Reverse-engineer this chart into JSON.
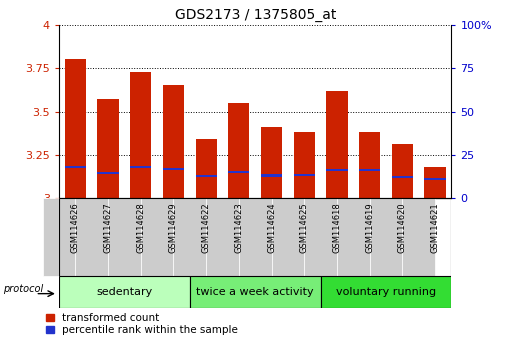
{
  "title": "GDS2173 / 1375805_at",
  "samples": [
    "GSM114626",
    "GSM114627",
    "GSM114628",
    "GSM114629",
    "GSM114622",
    "GSM114623",
    "GSM114624",
    "GSM114625",
    "GSM114618",
    "GSM114619",
    "GSM114620",
    "GSM114621"
  ],
  "transformed_count": [
    3.8,
    3.57,
    3.73,
    3.65,
    3.34,
    3.55,
    3.41,
    3.38,
    3.62,
    3.38,
    3.31,
    3.18
  ],
  "percentile_rank": [
    3.175,
    3.14,
    3.175,
    3.16,
    3.12,
    3.145,
    3.125,
    3.13,
    3.155,
    3.155,
    3.115,
    3.105
  ],
  "blue_bar_height": [
    0.012,
    0.012,
    0.012,
    0.012,
    0.012,
    0.012,
    0.012,
    0.012,
    0.012,
    0.012,
    0.012,
    0.012
  ],
  "bar_color": "#cc2200",
  "blue_color": "#2233cc",
  "ymin": 3.0,
  "ymax": 4.0,
  "y2min": 0,
  "y2max": 100,
  "yticks": [
    3.0,
    3.25,
    3.5,
    3.75,
    4.0
  ],
  "y2ticks": [
    0,
    25,
    50,
    75,
    100
  ],
  "groups": [
    {
      "label": "sedentary",
      "start": 0,
      "end": 4,
      "color": "#bbffbb"
    },
    {
      "label": "twice a week activity",
      "start": 4,
      "end": 8,
      "color": "#77ee77"
    },
    {
      "label": "voluntary running",
      "start": 8,
      "end": 12,
      "color": "#33dd33"
    }
  ],
  "protocol_label": "protocol",
  "legend_red": "transformed count",
  "legend_blue": "percentile rank within the sample",
  "bar_width": 0.65,
  "bar_color_red": "#cc2200",
  "y_tick_color": "#cc2200",
  "y2_tick_color": "#0000cc",
  "title_fontsize": 10,
  "tick_fontsize": 8,
  "sample_fontsize": 6,
  "group_label_fontsize": 8,
  "xtick_bg_color": "#cccccc",
  "plot_bg_color": "#ffffff"
}
